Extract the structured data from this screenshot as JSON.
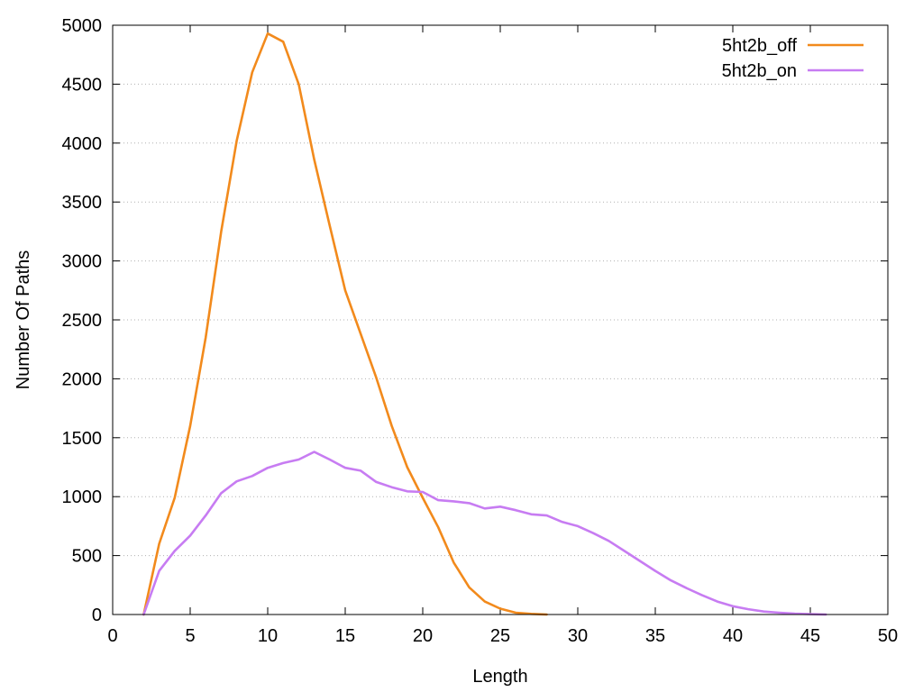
{
  "chart_data": {
    "type": "line",
    "title": "",
    "xlabel": "Length",
    "ylabel": "Number Of Paths",
    "xlim": [
      0,
      50
    ],
    "ylim": [
      0,
      5000
    ],
    "xticks": [
      0,
      5,
      10,
      15,
      20,
      25,
      30,
      35,
      40,
      45,
      50
    ],
    "yticks": [
      0,
      500,
      1000,
      1500,
      2000,
      2500,
      3000,
      3500,
      4000,
      4500,
      5000
    ],
    "grid": "horizontal dotted",
    "legend_position": "top-right",
    "series": [
      {
        "name": "5ht2b_off",
        "color": "#f28a1c",
        "x": [
          2,
          3,
          4,
          5,
          6,
          7,
          8,
          9,
          10,
          11,
          12,
          13,
          14,
          15,
          16,
          17,
          18,
          19,
          20,
          21,
          22,
          23,
          24,
          25,
          26,
          27,
          28
        ],
        "y": [
          0,
          600,
          990,
          1600,
          2350,
          3250,
          4020,
          4600,
          4930,
          4860,
          4500,
          3860,
          3300,
          2750,
          2380,
          2010,
          1600,
          1250,
          990,
          740,
          440,
          230,
          110,
          50,
          15,
          5,
          0
        ]
      },
      {
        "name": "5ht2b_on",
        "color": "#c77cf2",
        "x": [
          2,
          3,
          4,
          5,
          6,
          7,
          8,
          9,
          10,
          11,
          12,
          13,
          14,
          15,
          16,
          17,
          18,
          19,
          20,
          21,
          22,
          23,
          24,
          25,
          26,
          27,
          28,
          29,
          30,
          31,
          32,
          33,
          34,
          35,
          36,
          37,
          38,
          39,
          40,
          41,
          42,
          43,
          44,
          45,
          46
        ],
        "y": [
          0,
          370,
          540,
          670,
          840,
          1030,
          1130,
          1175,
          1245,
          1285,
          1315,
          1380,
          1315,
          1245,
          1220,
          1125,
          1080,
          1045,
          1040,
          970,
          960,
          945,
          900,
          915,
          885,
          850,
          840,
          785,
          750,
          690,
          625,
          540,
          455,
          370,
          290,
          225,
          165,
          110,
          70,
          45,
          25,
          15,
          8,
          3,
          0
        ]
      }
    ]
  }
}
